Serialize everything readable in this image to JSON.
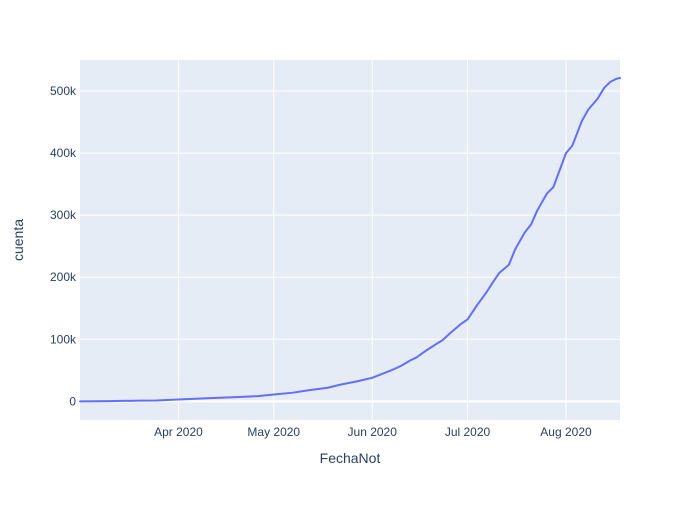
{
  "chart_data": {
    "type": "line",
    "xlabel": "FechaNot",
    "ylabel": "cuenta",
    "x_tick_labels": [
      "Apr 2020",
      "May 2020",
      "Jun 2020",
      "Jul 2020",
      "Aug 2020"
    ],
    "x_tick_dates": [
      "2020-04-01",
      "2020-05-01",
      "2020-06-01",
      "2020-07-01",
      "2020-08-01"
    ],
    "y_tick_labels": [
      "0",
      "100k",
      "200k",
      "300k",
      "400k",
      "500k"
    ],
    "y_tick_values": [
      0,
      100000,
      200000,
      300000,
      400000,
      500000
    ],
    "xlim": [
      "2020-03-01",
      "2020-08-18"
    ],
    "ylim": [
      -30000,
      550000
    ],
    "grid": true,
    "series": [
      {
        "color": "#636efa",
        "x": [
          "2020-03-01",
          "2020-03-10",
          "2020-03-20",
          "2020-03-25",
          "2020-04-01",
          "2020-04-10",
          "2020-04-20",
          "2020-04-26",
          "2020-05-01",
          "2020-05-07",
          "2020-05-12",
          "2020-05-18",
          "2020-05-22",
          "2020-05-27",
          "2020-06-01",
          "2020-06-04",
          "2020-06-07",
          "2020-06-10",
          "2020-06-13",
          "2020-06-15",
          "2020-06-18",
          "2020-06-21",
          "2020-06-23",
          "2020-06-26",
          "2020-06-29",
          "2020-07-01",
          "2020-07-04",
          "2020-07-07",
          "2020-07-09",
          "2020-07-11",
          "2020-07-14",
          "2020-07-16",
          "2020-07-19",
          "2020-07-21",
          "2020-07-23",
          "2020-07-26",
          "2020-07-28",
          "2020-08-01",
          "2020-08-03",
          "2020-08-06",
          "2020-08-08",
          "2020-08-11",
          "2020-08-13",
          "2020-08-15",
          "2020-08-17",
          "2020-08-18"
        ],
        "y": [
          0,
          500,
          1200,
          1500,
          3000,
          5000,
          7000,
          8500,
          11000,
          14000,
          18000,
          22000,
          27000,
          32000,
          38000,
          44000,
          50000,
          57000,
          66000,
          71000,
          82000,
          92000,
          98000,
          112000,
          125000,
          132000,
          155000,
          176000,
          192000,
          207000,
          220000,
          245000,
          272000,
          285000,
          308000,
          335000,
          345000,
          400000,
          412000,
          452000,
          470000,
          488000,
          505000,
          515000,
          520000,
          521000
        ]
      }
    ]
  }
}
